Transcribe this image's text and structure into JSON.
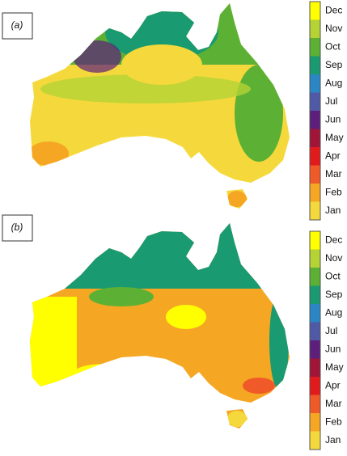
{
  "panels": [
    {
      "label": "(a)"
    },
    {
      "label": "(b)"
    }
  ],
  "legend": [
    {
      "label": "Dec",
      "color": "#ffff00"
    },
    {
      "label": "Nov",
      "color": "#b5d334"
    },
    {
      "label": "Oct",
      "color": "#5cb135"
    },
    {
      "label": "Sep",
      "color": "#1a9a70"
    },
    {
      "label": "Aug",
      "color": "#2a86c4"
    },
    {
      "label": "Jul",
      "color": "#4f59a6"
    },
    {
      "label": "Jun",
      "color": "#5e1e7c"
    },
    {
      "label": "May",
      "color": "#a01538"
    },
    {
      "label": "Apr",
      "color": "#e31a1c"
    },
    {
      "label": "Mar",
      "color": "#f05a28"
    },
    {
      "label": "Feb",
      "color": "#f5a623"
    },
    {
      "label": "Jan",
      "color": "#f5d93c"
    }
  ]
}
